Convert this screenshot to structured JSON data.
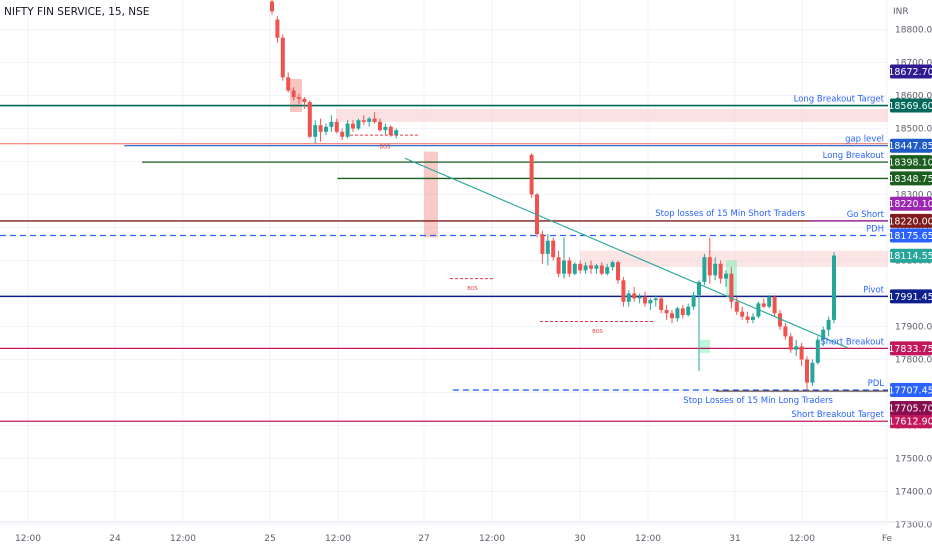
{
  "header": {
    "symbol_title": "NIFTY FIN SERVICE, 15, NSE",
    "currency": "INR"
  },
  "colors": {
    "up": "#26a69a",
    "down": "#ef5350",
    "grid": "#f0f3fa",
    "gap_zone": "#f7c6c6",
    "trendline": "#26a69a",
    "axis_text": "#5d606b"
  },
  "chart_data": {
    "type": "candlestick",
    "title": "NIFTY FIN SERVICE, 15, NSE",
    "ylabel": "INR",
    "ylim": [
      17200,
      18900
    ],
    "y_ticks": [
      "18800.00",
      "18700.00",
      "18600.00",
      "18500.00",
      "18400.00",
      "18300.00",
      "18200.00",
      "18100.00",
      "18000.00",
      "17900.00",
      "17800.00",
      "17700.00",
      "17600.00",
      "17500.00",
      "17400.00",
      "17300.00"
    ],
    "x_ticks": [
      "12:00",
      "24",
      "12:00",
      "25",
      "12:00",
      "27",
      "12:00",
      "30",
      "12:00",
      "31",
      "12:00",
      "Fe"
    ],
    "candles": [
      {
        "t": "25 09:15",
        "o": 18885,
        "h": 18895,
        "l": 18845,
        "c": 18855
      },
      {
        "t": "25 09:30",
        "o": 18830,
        "h": 18840,
        "l": 18760,
        "c": 18775
      },
      {
        "t": "25 09:45",
        "o": 18775,
        "h": 18785,
        "l": 18645,
        "c": 18655
      },
      {
        "t": "25 10:00",
        "o": 18655,
        "h": 18670,
        "l": 18610,
        "c": 18615
      },
      {
        "t": "25 10:15",
        "o": 18615,
        "h": 18625,
        "l": 18585,
        "c": 18595
      },
      {
        "t": "25 10:30",
        "o": 18595,
        "h": 18605,
        "l": 18575,
        "c": 18590
      },
      {
        "t": "25 10:45",
        "o": 18590,
        "h": 18595,
        "l": 18560,
        "c": 18580
      },
      {
        "t": "25 11:00",
        "o": 18580,
        "h": 18585,
        "l": 18470,
        "c": 18475
      },
      {
        "t": "25 11:15",
        "o": 18475,
        "h": 18525,
        "l": 18455,
        "c": 18510
      },
      {
        "t": "25 11:30",
        "o": 18510,
        "h": 18530,
        "l": 18460,
        "c": 18490
      },
      {
        "t": "25 11:45",
        "o": 18490,
        "h": 18515,
        "l": 18480,
        "c": 18505
      },
      {
        "t": "25 12:00",
        "o": 18505,
        "h": 18540,
        "l": 18490,
        "c": 18520
      },
      {
        "t": "25 12:15",
        "o": 18520,
        "h": 18530,
        "l": 18485,
        "c": 18490
      },
      {
        "t": "25 12:30",
        "o": 18490,
        "h": 18500,
        "l": 18465,
        "c": 18475
      },
      {
        "t": "25 12:45",
        "o": 18475,
        "h": 18525,
        "l": 18470,
        "c": 18515
      },
      {
        "t": "25 13:00",
        "o": 18515,
        "h": 18525,
        "l": 18490,
        "c": 18500
      },
      {
        "t": "25 13:15",
        "o": 18500,
        "h": 18530,
        "l": 18495,
        "c": 18525
      },
      {
        "t": "25 13:30",
        "o": 18525,
        "h": 18540,
        "l": 18510,
        "c": 18520
      },
      {
        "t": "25 13:45",
        "o": 18520,
        "h": 18535,
        "l": 18505,
        "c": 18530
      },
      {
        "t": "25 14:00",
        "o": 18530,
        "h": 18550,
        "l": 18515,
        "c": 18520
      },
      {
        "t": "25 14:15",
        "o": 18520,
        "h": 18530,
        "l": 18490,
        "c": 18495
      },
      {
        "t": "25 14:30",
        "o": 18495,
        "h": 18515,
        "l": 18480,
        "c": 18505
      },
      {
        "t": "25 14:45",
        "o": 18505,
        "h": 18510,
        "l": 18475,
        "c": 18480
      },
      {
        "t": "25 15:00",
        "o": 18480,
        "h": 18500,
        "l": 18470,
        "c": 18495
      },
      {
        "t": "27 09:15",
        "o": 18420,
        "h": 18425,
        "l": 18290,
        "c": 18300
      },
      {
        "t": "27 09:30",
        "o": 18300,
        "h": 18305,
        "l": 18170,
        "c": 18180
      },
      {
        "t": "27 09:45",
        "o": 18180,
        "h": 18190,
        "l": 18090,
        "c": 18120
      },
      {
        "t": "27 10:00",
        "o": 18120,
        "h": 18180,
        "l": 18085,
        "c": 18160
      },
      {
        "t": "27 10:15",
        "o": 18160,
        "h": 18170,
        "l": 18100,
        "c": 18110
      },
      {
        "t": "27 10:30",
        "o": 18110,
        "h": 18130,
        "l": 18050,
        "c": 18060
      },
      {
        "t": "27 10:45",
        "o": 18060,
        "h": 18170,
        "l": 18045,
        "c": 18100
      },
      {
        "t": "27 11:00",
        "o": 18100,
        "h": 18110,
        "l": 18050,
        "c": 18060
      },
      {
        "t": "27 11:15",
        "o": 18060,
        "h": 18095,
        "l": 18055,
        "c": 18090
      },
      {
        "t": "27 11:30",
        "o": 18090,
        "h": 18100,
        "l": 18060,
        "c": 18070
      },
      {
        "t": "27 11:45",
        "o": 18070,
        "h": 18095,
        "l": 18060,
        "c": 18085
      },
      {
        "t": "27 12:00",
        "o": 18085,
        "h": 18100,
        "l": 18060,
        "c": 18075
      },
      {
        "t": "27 12:15",
        "o": 18075,
        "h": 18090,
        "l": 18060,
        "c": 18085
      },
      {
        "t": "27 12:30",
        "o": 18085,
        "h": 18095,
        "l": 18055,
        "c": 18060
      },
      {
        "t": "27 12:45",
        "o": 18060,
        "h": 18090,
        "l": 18055,
        "c": 18080
      },
      {
        "t": "27 13:00",
        "o": 18080,
        "h": 18100,
        "l": 18070,
        "c": 18095
      },
      {
        "t": "27 13:15",
        "o": 18095,
        "h": 18100,
        "l": 18030,
        "c": 18040
      },
      {
        "t": "27 13:30",
        "o": 18040,
        "h": 18050,
        "l": 17960,
        "c": 17975
      },
      {
        "t": "27 13:45",
        "o": 17975,
        "h": 18010,
        "l": 17960,
        "c": 18000
      },
      {
        "t": "27 14:00",
        "o": 18000,
        "h": 18020,
        "l": 17975,
        "c": 17985
      },
      {
        "t": "27 14:15",
        "o": 17985,
        "h": 18000,
        "l": 17970,
        "c": 17990
      },
      {
        "t": "27 14:30",
        "o": 17990,
        "h": 18005,
        "l": 17960,
        "c": 17970
      },
      {
        "t": "27 14:45",
        "o": 17970,
        "h": 17985,
        "l": 17950,
        "c": 17980
      },
      {
        "t": "27 15:00",
        "o": 17980,
        "h": 17995,
        "l": 17960,
        "c": 17985
      },
      {
        "t": "30 09:15",
        "o": 17985,
        "h": 17990,
        "l": 17940,
        "c": 17950
      },
      {
        "t": "30 09:30",
        "o": 17950,
        "h": 17965,
        "l": 17920,
        "c": 17940
      },
      {
        "t": "30 09:45",
        "o": 17940,
        "h": 17950,
        "l": 17910,
        "c": 17925
      },
      {
        "t": "30 10:00",
        "o": 17925,
        "h": 17960,
        "l": 17915,
        "c": 17955
      },
      {
        "t": "30 10:15",
        "o": 17955,
        "h": 17965,
        "l": 17925,
        "c": 17935
      },
      {
        "t": "30 10:30",
        "o": 17935,
        "h": 17970,
        "l": 17930,
        "c": 17960
      },
      {
        "t": "30 10:45",
        "o": 17960,
        "h": 18005,
        "l": 17950,
        "c": 17995
      },
      {
        "t": "30 11:00",
        "o": 17995,
        "h": 18040,
        "l": 17765,
        "c": 18035
      },
      {
        "t": "30 11:15",
        "o": 18035,
        "h": 18120,
        "l": 18025,
        "c": 18110
      },
      {
        "t": "30 11:30",
        "o": 18110,
        "h": 18170,
        "l": 18030,
        "c": 18055
      },
      {
        "t": "30 11:45",
        "o": 18055,
        "h": 18110,
        "l": 18040,
        "c": 18090
      },
      {
        "t": "30 12:00",
        "o": 18090,
        "h": 18100,
        "l": 18030,
        "c": 18045
      },
      {
        "t": "30 12:15",
        "o": 18045,
        "h": 18070,
        "l": 18020,
        "c": 18060
      },
      {
        "t": "30 12:30",
        "o": 18060,
        "h": 18080,
        "l": 17955,
        "c": 17975
      },
      {
        "t": "30 12:45",
        "o": 17975,
        "h": 17990,
        "l": 17935,
        "c": 17945
      },
      {
        "t": "30 13:00",
        "o": 17945,
        "h": 17960,
        "l": 17920,
        "c": 17930
      },
      {
        "t": "30 13:15",
        "o": 17930,
        "h": 17945,
        "l": 17910,
        "c": 17920
      },
      {
        "t": "30 13:30",
        "o": 17920,
        "h": 17940,
        "l": 17910,
        "c": 17930
      },
      {
        "t": "30 13:45",
        "o": 17930,
        "h": 17975,
        "l": 17925,
        "c": 17970
      },
      {
        "t": "30 14:00",
        "o": 17970,
        "h": 17985,
        "l": 17955,
        "c": 17960
      },
      {
        "t": "30 14:15",
        "o": 17960,
        "h": 17995,
        "l": 17955,
        "c": 17990
      },
      {
        "t": "30 14:30",
        "o": 17990,
        "h": 17995,
        "l": 17930,
        "c": 17940
      },
      {
        "t": "30 14:45",
        "o": 17940,
        "h": 17950,
        "l": 17890,
        "c": 17900
      },
      {
        "t": "30 15:00",
        "o": 17900,
        "h": 17910,
        "l": 17860,
        "c": 17870
      },
      {
        "t": "31 09:15",
        "o": 17870,
        "h": 17880,
        "l": 17820,
        "c": 17830
      },
      {
        "t": "31 09:30",
        "o": 17830,
        "h": 17860,
        "l": 17810,
        "c": 17840
      },
      {
        "t": "31 09:45",
        "o": 17840,
        "h": 17850,
        "l": 17780,
        "c": 17800
      },
      {
        "t": "31 10:00",
        "o": 17800,
        "h": 17810,
        "l": 17705,
        "c": 17730
      },
      {
        "t": "31 10:15",
        "o": 17730,
        "h": 17800,
        "l": 17720,
        "c": 17790
      },
      {
        "t": "31 10:30",
        "o": 17790,
        "h": 17870,
        "l": 17785,
        "c": 17860
      },
      {
        "t": "31 10:45",
        "o": 17860,
        "h": 17900,
        "l": 17840,
        "c": 17890
      },
      {
        "t": "31 11:00",
        "o": 17890,
        "h": 17930,
        "l": 17870,
        "c": 17920
      },
      {
        "t": "31 11:15",
        "o": 17920,
        "h": 18125,
        "l": 17910,
        "c": 18115
      }
    ],
    "levels": [
      {
        "name": "Long Breakout Target",
        "price": 18569.6,
        "color": "#00695c",
        "badge": "18569.60",
        "style": "solid",
        "width": 1.6,
        "start": 0
      },
      {
        "name": "gap level",
        "price": 18447.85,
        "color": "#1e5bc6",
        "badge": "18447.85",
        "style": "solid",
        "width": 1.2,
        "start": 0.14,
        "extra_line": "#f28b82"
      },
      {
        "name": "Long Breakout",
        "price": 18398.1,
        "color": "#1b5e20",
        "badge": "18398.10",
        "style": "solid",
        "width": 1.3,
        "start": 0.16
      },
      {
        "name": "",
        "price": 18348.75,
        "color": "#1b5e20",
        "badge": "18348.75",
        "style": "solid",
        "width": 1.3,
        "start": 0.38
      },
      {
        "name": "Go Short",
        "price": 18220.0,
        "color": "#7f1d1d",
        "badge": "18220.00",
        "style": "solid",
        "width": 1.4,
        "start": 0
      },
      {
        "name": "PDH",
        "price": 18175.65,
        "color": "#2962ff",
        "badge": "18175.65",
        "style": "dashed",
        "width": 1.3,
        "start": 0
      },
      {
        "name": "Pivot",
        "price": 17991.45,
        "color": "#0d1f8a",
        "badge": "17991.45",
        "style": "solid",
        "width": 1.5,
        "start": 0
      },
      {
        "name": "Short Breakout",
        "price": 17833.75,
        "color": "#c2185b",
        "badge": "17833.75",
        "style": "solid",
        "width": 1.3,
        "start": 0
      },
      {
        "name": "PDL",
        "price": 17707.45,
        "color": "#2962ff",
        "badge": "17707.45",
        "style": "dashed",
        "width": 1.3,
        "start": 0.51
      },
      {
        "name": "Short Breakout Target",
        "price": 17612.9,
        "color": "#c2185b",
        "badge": "17612.90",
        "style": "solid",
        "width": 1.3,
        "start": 0
      }
    ],
    "extra_badges": [
      {
        "value": "18672.70",
        "price": 18672.7,
        "color": "#311b92"
      },
      {
        "value": "18220.10",
        "price": 18220.1,
        "color": "#9c27b0"
      },
      {
        "value": "18114.55",
        "price": 18114.55,
        "color": "#26a69a"
      },
      {
        "value": "17705.70",
        "price": 17705.7,
        "color": "#880e4f"
      }
    ],
    "annotations": [
      {
        "text": "Stop losses of 15 Min Short Traders",
        "price": 18220.0,
        "color": "#2962ff"
      },
      {
        "text": "Stop Losses of 15 Min Long Traders",
        "price": 17707.45,
        "color": "#2962ff"
      }
    ],
    "bos_labels": [
      "BOS",
      "BOS",
      "BOS"
    ]
  }
}
